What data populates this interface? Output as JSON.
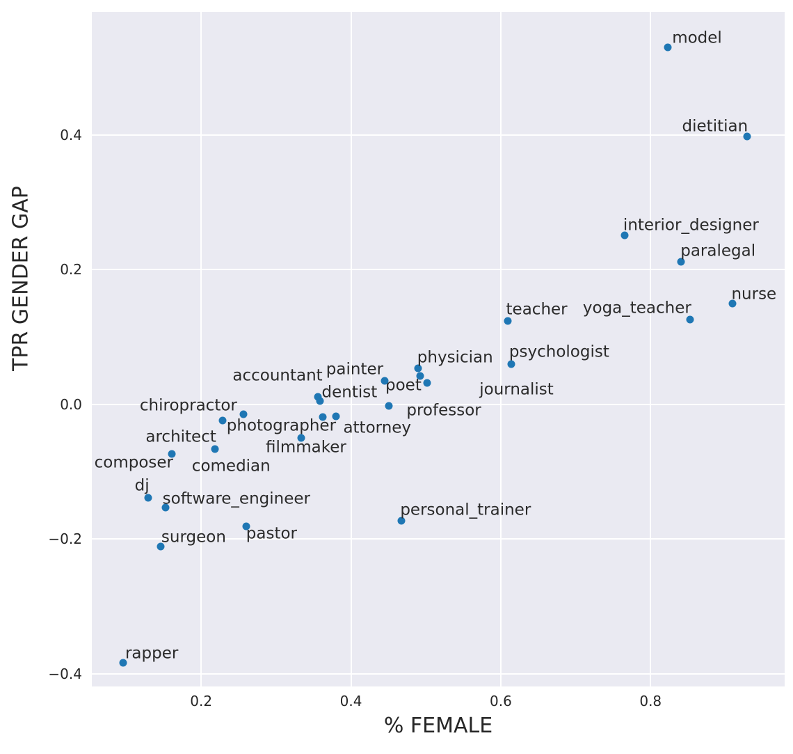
{
  "figure": {
    "background": "#ffffff",
    "plot_background": "#eaeaf2",
    "grid_color": "#ffffff",
    "point_color": "#1f77b4",
    "text_color": "#262626",
    "annotation_color": "#2b2b2b"
  },
  "chart_data": {
    "type": "scatter",
    "title": "",
    "xlabel": "% FEMALE",
    "ylabel": "TPR GENDER GAP",
    "xlim": [
      0.054,
      0.979
    ],
    "ylim": [
      -0.419,
      0.583
    ],
    "grid": true,
    "legend": false,
    "x_ticks": [
      0.2,
      0.4,
      0.6,
      0.8
    ],
    "x_tick_labels": [
      "0.2",
      "0.4",
      "0.6",
      "0.8"
    ],
    "y_ticks": [
      0.4,
      0.2,
      0.0,
      -0.2,
      -0.4
    ],
    "y_tick_labels": [
      "0.4",
      "0.2",
      "0.0",
      "−0.2",
      "−0.4"
    ],
    "points": [
      {
        "label": "model",
        "x": 0.823,
        "y": 0.53,
        "label_x": 0.862,
        "label_y": 0.544
      },
      {
        "label": "dietitian",
        "x": 0.929,
        "y": 0.398,
        "label_x": 0.886,
        "label_y": 0.412
      },
      {
        "label": "interior_designer",
        "x": 0.765,
        "y": 0.251,
        "label_x": 0.854,
        "label_y": 0.266
      },
      {
        "label": "paralegal",
        "x": 0.841,
        "y": 0.212,
        "label_x": 0.89,
        "label_y": 0.227
      },
      {
        "label": "nurse",
        "x": 0.909,
        "y": 0.15,
        "label_x": 0.938,
        "label_y": 0.163
      },
      {
        "label": "yoga_teacher",
        "x": 0.853,
        "y": 0.126,
        "label_x": 0.782,
        "label_y": 0.142
      },
      {
        "label": "teacher",
        "x": 0.609,
        "y": 0.124,
        "label_x": 0.648,
        "label_y": 0.14
      },
      {
        "label": "psychologist",
        "x": 0.614,
        "y": 0.06,
        "label_x": 0.678,
        "label_y": 0.077
      },
      {
        "label": "physician",
        "x": 0.49,
        "y": 0.054,
        "label_x": 0.539,
        "label_y": 0.069
      },
      {
        "label": "poet",
        "x": 0.492,
        "y": 0.042,
        "label_x": 0.47,
        "label_y": 0.028
      },
      {
        "label": "journalist",
        "x": 0.502,
        "y": 0.032,
        "label_x": 0.621,
        "label_y": 0.022
      },
      {
        "label": "painter",
        "x": 0.445,
        "y": 0.035,
        "label_x": 0.405,
        "label_y": 0.051
      },
      {
        "label": "professor",
        "x": 0.451,
        "y": -0.002,
        "label_x": 0.524,
        "label_y": -0.009
      },
      {
        "label": "accountant",
        "x": 0.356,
        "y": 0.011,
        "label_x": 0.302,
        "label_y": 0.042
      },
      {
        "label": "dentist",
        "x": 0.359,
        "y": 0.005,
        "label_x": 0.398,
        "label_y": 0.017
      },
      {
        "label": "photographer",
        "x": 0.362,
        "y": -0.019,
        "label_x": 0.307,
        "label_y": -0.032
      },
      {
        "label": "attorney",
        "x": 0.38,
        "y": -0.018,
        "label_x": 0.435,
        "label_y": -0.035
      },
      {
        "label": "chiropractor",
        "x": 0.256,
        "y": -0.015,
        "label_x": 0.183,
        "label_y": -0.002
      },
      {
        "label": "architect",
        "x": 0.229,
        "y": -0.024,
        "label_x": 0.173,
        "label_y": -0.049
      },
      {
        "label": "comedian",
        "x": 0.218,
        "y": -0.066,
        "label_x": 0.24,
        "label_y": -0.092
      },
      {
        "label": "filmmaker",
        "x": 0.334,
        "y": -0.05,
        "label_x": 0.34,
        "label_y": -0.064
      },
      {
        "label": "composer",
        "x": 0.161,
        "y": -0.074,
        "label_x": 0.11,
        "label_y": -0.087
      },
      {
        "label": "dj",
        "x": 0.129,
        "y": -0.139,
        "label_x": 0.121,
        "label_y": -0.121
      },
      {
        "label": "software_engineer",
        "x": 0.152,
        "y": -0.153,
        "label_x": 0.247,
        "label_y": -0.141
      },
      {
        "label": "pastor",
        "x": 0.26,
        "y": -0.181,
        "label_x": 0.294,
        "label_y": -0.193
      },
      {
        "label": "surgeon",
        "x": 0.146,
        "y": -0.211,
        "label_x": 0.19,
        "label_y": -0.198
      },
      {
        "label": "personal_trainer",
        "x": 0.467,
        "y": -0.173,
        "label_x": 0.553,
        "label_y": -0.157
      },
      {
        "label": "rapper",
        "x": 0.096,
        "y": -0.384,
        "label_x": 0.134,
        "label_y": -0.37
      }
    ]
  }
}
